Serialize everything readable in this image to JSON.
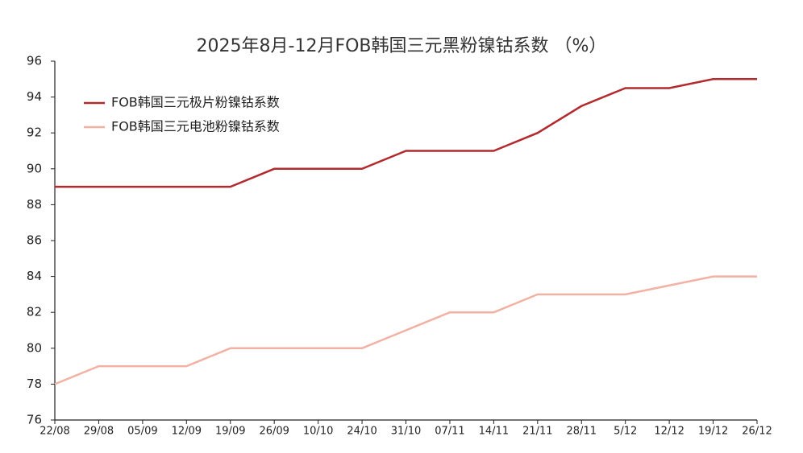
{
  "chart_data": {
    "type": "line",
    "title": "2025年8月-12月FOB韩国三元黑粉镍钴系数 （%）",
    "categories": [
      "22/08",
      "29/08",
      "05/09",
      "12/09",
      "19/09",
      "26/09",
      "10/10",
      "24/10",
      "31/10",
      "07/11",
      "14/11",
      "21/11",
      "28/11",
      "5/12",
      "12/12",
      "19/12",
      "26/12"
    ],
    "series": [
      {
        "name": "FOB韩国三元极片粉镍钴系数",
        "color": "#b22a2e",
        "values": [
          89,
          89,
          89,
          89,
          89,
          90,
          90,
          90,
          91,
          91,
          91,
          92,
          93.5,
          94.5,
          94.5,
          95,
          95
        ]
      },
      {
        "name": "FOB韩国三元电池粉镍钴系数",
        "color": "#f2b1a3",
        "values": [
          78,
          79,
          79,
          79,
          80,
          80,
          80,
          80,
          81,
          82,
          82,
          83,
          83,
          83,
          83.5,
          84,
          84
        ]
      }
    ],
    "ylim": [
      76,
      96
    ],
    "yticks": [
      76,
      78,
      80,
      82,
      84,
      86,
      88,
      90,
      92,
      94,
      96
    ]
  }
}
